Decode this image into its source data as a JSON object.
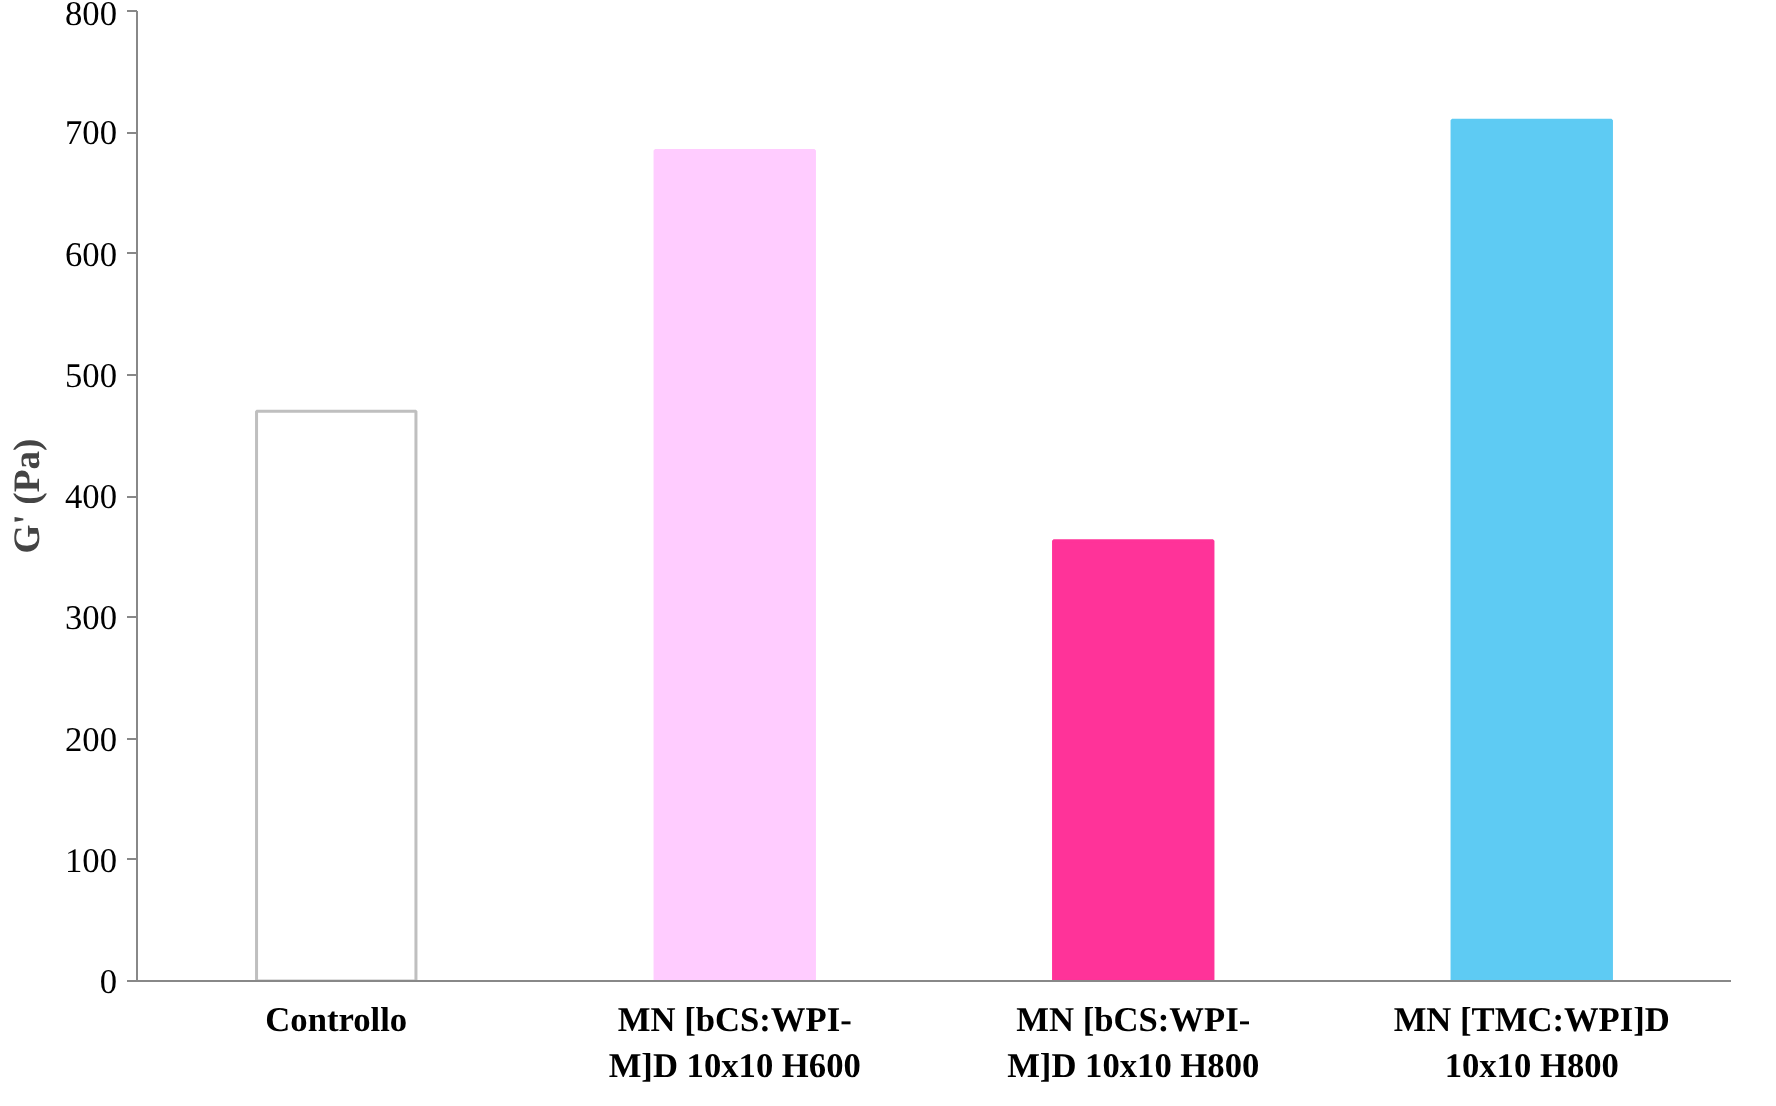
{
  "chart_data": {
    "type": "bar",
    "ylabel": "G' (Pa)",
    "categories": [
      "Controllo",
      "MN [bCS:WPI-\nM]D 10x10 H600",
      "MN [bCS:WPI-\nM]D 10x10 H800",
      "MN [TMC:WPI]D\n10x10 H800"
    ],
    "values": [
      470,
      685,
      363,
      710
    ],
    "colors": [
      "#ffffff",
      "#ffccff",
      "#ff3399",
      "#5ecbf3"
    ],
    "ylim": [
      0,
      800
    ],
    "yticks": [
      0,
      100,
      200,
      300,
      400,
      500,
      600,
      700,
      800
    ],
    "grid": false
  }
}
